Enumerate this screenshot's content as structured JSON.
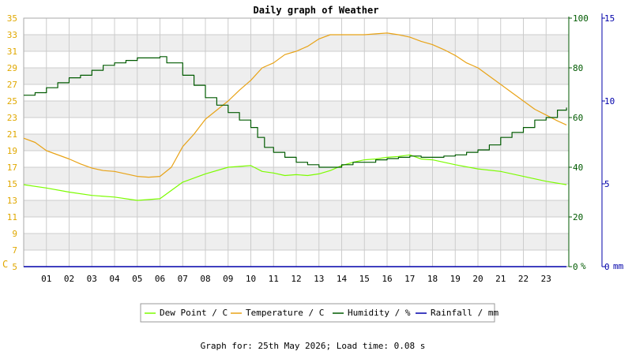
{
  "colors": {
    "dewpoint": "#7cfc00",
    "temperature": "#e8a317",
    "humidity": "#005a00",
    "rainfall": "#0000aa",
    "left_axis_text": "#e0a800",
    "band": "#eeeeee",
    "grid": "#cccccc"
  },
  "footer": "Graph for: 25th May 2026; Load time: 0.08 s",
  "chart_data": {
    "type": "line",
    "title": "Daily graph of Weather",
    "grid": true,
    "legend_position": "bottom",
    "x": {
      "range": [
        0,
        24
      ],
      "tick_labels": [
        "01",
        "02",
        "03",
        "04",
        "05",
        "06",
        "07",
        "08",
        "09",
        "10",
        "11",
        "12",
        "13",
        "14",
        "15",
        "16",
        "17",
        "18",
        "19",
        "20",
        "21",
        "22",
        "23"
      ]
    },
    "axes": {
      "left": {
        "unit_label": "C",
        "range": [
          5,
          35
        ],
        "ticks": [
          "5",
          "7",
          "9",
          "11",
          "13",
          "15",
          "17",
          "19",
          "21",
          "23",
          "25",
          "27",
          "29",
          "31",
          "33",
          "35"
        ]
      },
      "right_humidity": {
        "unit_label": "%",
        "range": [
          0,
          100
        ],
        "ticks": [
          "0",
          "20",
          "40",
          "60",
          "80",
          "100"
        ]
      },
      "right_rainfall": {
        "unit_label": "mm",
        "range": [
          0,
          15
        ],
        "ticks": [
          "0",
          "5",
          "10",
          "15"
        ]
      }
    },
    "series": [
      {
        "name": "Dew Point / C",
        "axis": "left",
        "points": [
          [
            0,
            14.9
          ],
          [
            1,
            14.5
          ],
          [
            2,
            14.0
          ],
          [
            3,
            13.6
          ],
          [
            4,
            13.4
          ],
          [
            5,
            13.0
          ],
          [
            6,
            13.2
          ],
          [
            6.5,
            14.2
          ],
          [
            7,
            15.2
          ],
          [
            8,
            16.2
          ],
          [
            9,
            17.0
          ],
          [
            10,
            17.2
          ],
          [
            10.5,
            16.5
          ],
          [
            11,
            16.3
          ],
          [
            11.5,
            16.0
          ],
          [
            12,
            16.1
          ],
          [
            12.5,
            16.0
          ],
          [
            13,
            16.2
          ],
          [
            13.5,
            16.6
          ],
          [
            14,
            17.2
          ],
          [
            14.5,
            17.6
          ],
          [
            15,
            17.9
          ],
          [
            15.5,
            18.0
          ],
          [
            16,
            18.2
          ],
          [
            16.5,
            18.3
          ],
          [
            17,
            18.5
          ],
          [
            17.5,
            18.0
          ],
          [
            18,
            17.9
          ],
          [
            18.5,
            17.6
          ],
          [
            19,
            17.3
          ],
          [
            20,
            16.8
          ],
          [
            21,
            16.5
          ],
          [
            22,
            15.9
          ],
          [
            23,
            15.3
          ],
          [
            23.9,
            14.9
          ]
        ]
      },
      {
        "name": "Temperature / C",
        "axis": "left",
        "points": [
          [
            0,
            20.5
          ],
          [
            0.5,
            20.0
          ],
          [
            1,
            19.0
          ],
          [
            2,
            18.0
          ],
          [
            2.5,
            17.4
          ],
          [
            3,
            16.9
          ],
          [
            3.5,
            16.6
          ],
          [
            4,
            16.5
          ],
          [
            4.5,
            16.2
          ],
          [
            5,
            15.9
          ],
          [
            5.5,
            15.8
          ],
          [
            6,
            15.9
          ],
          [
            6.5,
            17.0
          ],
          [
            7,
            19.5
          ],
          [
            7.5,
            21.0
          ],
          [
            8,
            22.8
          ],
          [
            9,
            25.0
          ],
          [
            9.5,
            26.3
          ],
          [
            10,
            27.5
          ],
          [
            10.5,
            29.0
          ],
          [
            11,
            29.6
          ],
          [
            11.5,
            30.6
          ],
          [
            12,
            31.0
          ],
          [
            12.5,
            31.6
          ],
          [
            13,
            32.5
          ],
          [
            13.5,
            33.0
          ],
          [
            14,
            33.0
          ],
          [
            15,
            33.0
          ],
          [
            15.5,
            33.1
          ],
          [
            16,
            33.2
          ],
          [
            16.5,
            33.0
          ],
          [
            17,
            32.7
          ],
          [
            17.5,
            32.2
          ],
          [
            18,
            31.8
          ],
          [
            18.5,
            31.2
          ],
          [
            19,
            30.5
          ],
          [
            19.5,
            29.6
          ],
          [
            20,
            29.0
          ],
          [
            20.5,
            28.0
          ],
          [
            21,
            27.0
          ],
          [
            21.5,
            26.0
          ],
          [
            22,
            25.0
          ],
          [
            22.5,
            24.0
          ],
          [
            23,
            23.3
          ],
          [
            23.5,
            22.6
          ],
          [
            23.9,
            22.1
          ]
        ]
      },
      {
        "name": "Humidity / %",
        "axis": "right_humidity",
        "points": [
          [
            0,
            69
          ],
          [
            0.5,
            70
          ],
          [
            1,
            72
          ],
          [
            1.5,
            74
          ],
          [
            2,
            76
          ],
          [
            2.5,
            77
          ],
          [
            3,
            79
          ],
          [
            3.5,
            81
          ],
          [
            4,
            82
          ],
          [
            4.5,
            83
          ],
          [
            5,
            84
          ],
          [
            5.5,
            84
          ],
          [
            6,
            84.5
          ],
          [
            6.3,
            82
          ],
          [
            7,
            77
          ],
          [
            7.5,
            73
          ],
          [
            8,
            68
          ],
          [
            8.5,
            65
          ],
          [
            9,
            62
          ],
          [
            9.5,
            59
          ],
          [
            10,
            56
          ],
          [
            10.3,
            52
          ],
          [
            10.6,
            48
          ],
          [
            11,
            46
          ],
          [
            11.5,
            44
          ],
          [
            12,
            42
          ],
          [
            12.5,
            41
          ],
          [
            13,
            40
          ],
          [
            13.5,
            40
          ],
          [
            14,
            41
          ],
          [
            14.5,
            42
          ],
          [
            15,
            42
          ],
          [
            15.5,
            43
          ],
          [
            16,
            43.5
          ],
          [
            16.5,
            44
          ],
          [
            17,
            44.5
          ],
          [
            17.5,
            44
          ],
          [
            18,
            44
          ],
          [
            18.5,
            44.5
          ],
          [
            19,
            45
          ],
          [
            19.5,
            46
          ],
          [
            20,
            47
          ],
          [
            20.5,
            49
          ],
          [
            21,
            52
          ],
          [
            21.5,
            54
          ],
          [
            22,
            56
          ],
          [
            22.5,
            59
          ],
          [
            23,
            60
          ],
          [
            23.5,
            63
          ],
          [
            23.9,
            64
          ]
        ]
      },
      {
        "name": "Rainfall / mm",
        "axis": "right_rainfall",
        "points": [
          [
            0,
            0
          ],
          [
            23.9,
            0
          ]
        ]
      }
    ]
  }
}
